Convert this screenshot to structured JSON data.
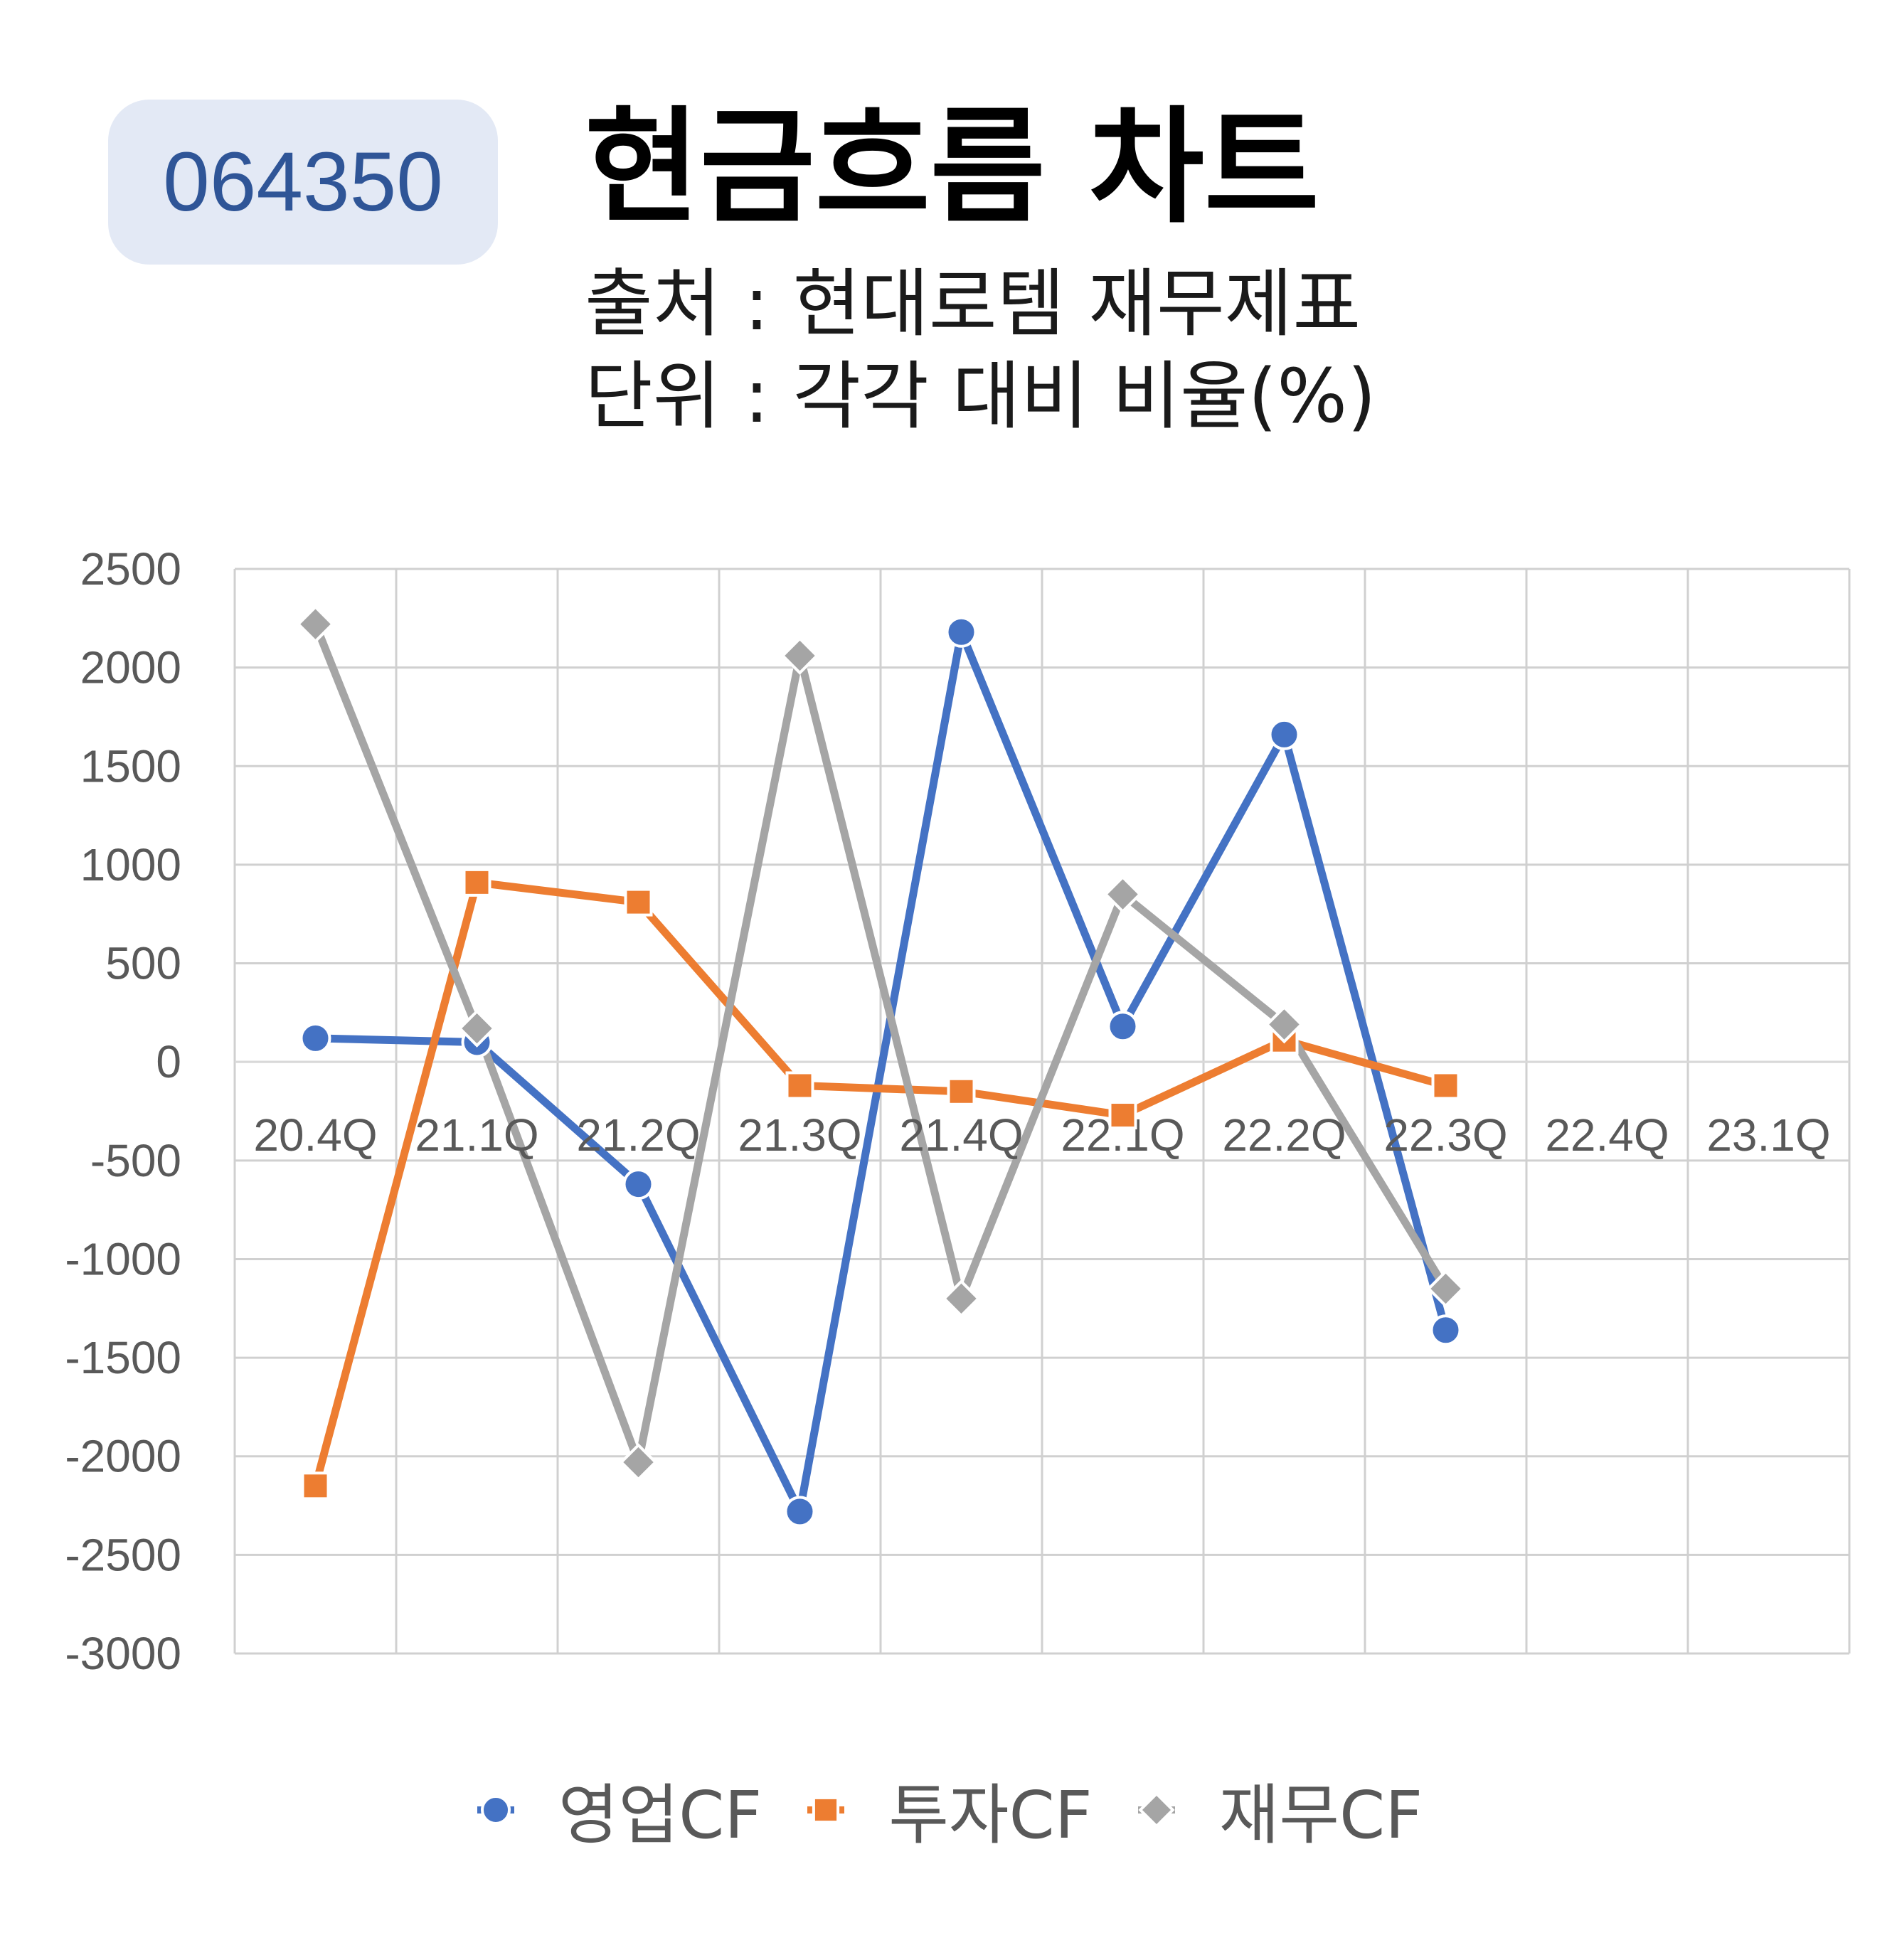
{
  "header": {
    "code": "064350",
    "title": "현금흐름 차트",
    "source": "출처 : 현대로템 재무제표",
    "unit": "단위 : 각각 대비 비율(%)"
  },
  "chart_data": {
    "type": "line",
    "categories": [
      "20.4Q",
      "21.1Q",
      "21.2Q",
      "21.3Q",
      "21.4Q",
      "22.1Q",
      "22.2Q",
      "22.3Q",
      "22.4Q",
      "23.1Q"
    ],
    "ylim": [
      -3000,
      2500
    ],
    "yticks": [
      2500,
      2000,
      1500,
      1000,
      500,
      0,
      -500,
      -1000,
      -1500,
      -2000,
      -2500,
      -3000
    ],
    "grid": true,
    "legend_position": "bottom",
    "series": [
      {
        "name": "영업CF",
        "color": "#4472c4",
        "marker": "circle",
        "values": [
          120,
          100,
          -620,
          -2280,
          2180,
          180,
          1660,
          -1360,
          null,
          null
        ]
      },
      {
        "name": "투자CF",
        "color": "#ed7d31",
        "marker": "square",
        "values": [
          -2150,
          910,
          810,
          -120,
          -150,
          -270,
          110,
          -120,
          null,
          null
        ]
      },
      {
        "name": "재무CF",
        "color": "#a5a5a5",
        "marker": "diamond",
        "values": [
          2220,
          170,
          -2030,
          2060,
          -1200,
          850,
          190,
          -1150,
          null,
          null
        ]
      }
    ]
  }
}
